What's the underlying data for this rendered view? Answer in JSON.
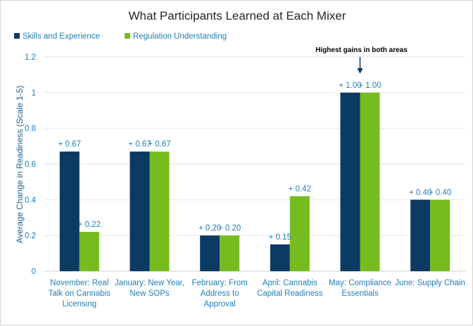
{
  "chart_data": {
    "type": "bar",
    "title": "What Participants Learned at Each Mixer",
    "ylabel": "Average Change in Readiness (Scale 1-5)",
    "xlabel": "",
    "ylim": [
      0,
      1.2
    ],
    "yticks": [
      0,
      0.2,
      0.4,
      0.6,
      0.8,
      1,
      1.2
    ],
    "ytick_labels": [
      "0",
      "0.2",
      "0.4",
      "0.6",
      "0.8",
      "1",
      "1.2"
    ],
    "grid": true,
    "legend_position": "top-left",
    "categories": [
      [
        "November: Real",
        "Talk on Cannabis",
        "Licensing"
      ],
      [
        "January: New Year,",
        "New SOPs"
      ],
      [
        "February: From",
        "Address to",
        "Approval"
      ],
      [
        "April: Cannabis",
        "Capital Readiness"
      ],
      [
        "May: Compliance",
        "Essentials"
      ],
      [
        "June: Supply Chain"
      ]
    ],
    "series": [
      {
        "name": "Skills and Experience",
        "color": "#0b3a63",
        "values": [
          0.67,
          0.67,
          0.2,
          0.15,
          1.0,
          0.4
        ],
        "labels": [
          "+ 0.67",
          "+ 0.67",
          "+ 0.20",
          "+ 0.15",
          "+ 1.00",
          "+ 0.40"
        ]
      },
      {
        "name": "Regulation Understanding",
        "color": "#77bc1f",
        "values": [
          0.22,
          0.67,
          0.2,
          0.42,
          1.0,
          0.4
        ],
        "labels": [
          "+ 0.22",
          "+ 0.67",
          "+ 0.20",
          "+ 0.42",
          "+ 1.00",
          "+ 0.40"
        ]
      }
    ],
    "annotation": {
      "text": "Highest gains in both areas",
      "category_index": 4
    }
  }
}
